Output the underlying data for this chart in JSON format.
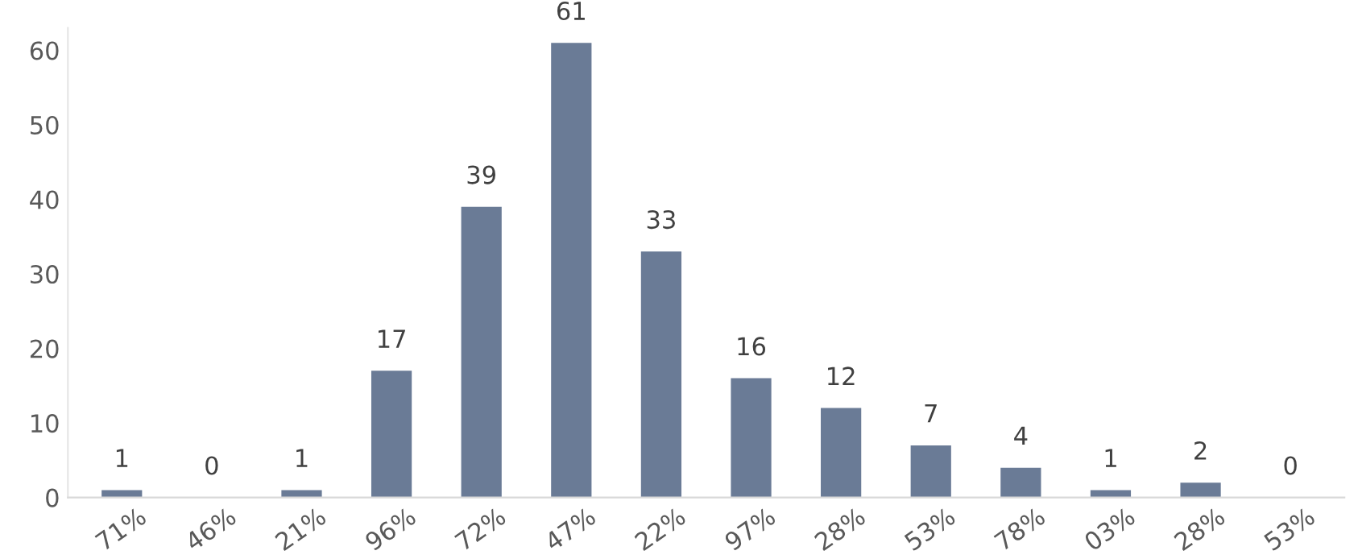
{
  "chart_data": {
    "type": "bar",
    "categories": [
      "71%",
      "46%",
      "21%",
      "96%",
      "72%",
      "47%",
      "22%",
      "97%",
      "28%",
      "53%",
      "78%",
      "03%",
      "28%",
      "53%"
    ],
    "values": [
      1,
      0,
      1,
      17,
      39,
      61,
      33,
      16,
      12,
      7,
      4,
      1,
      2,
      0
    ],
    "color": "#6a7b96",
    "ylim": [
      0,
      63
    ],
    "yticks": [
      0,
      10,
      20,
      30,
      40,
      50,
      60
    ],
    "grid": false,
    "data_labels": true
  }
}
